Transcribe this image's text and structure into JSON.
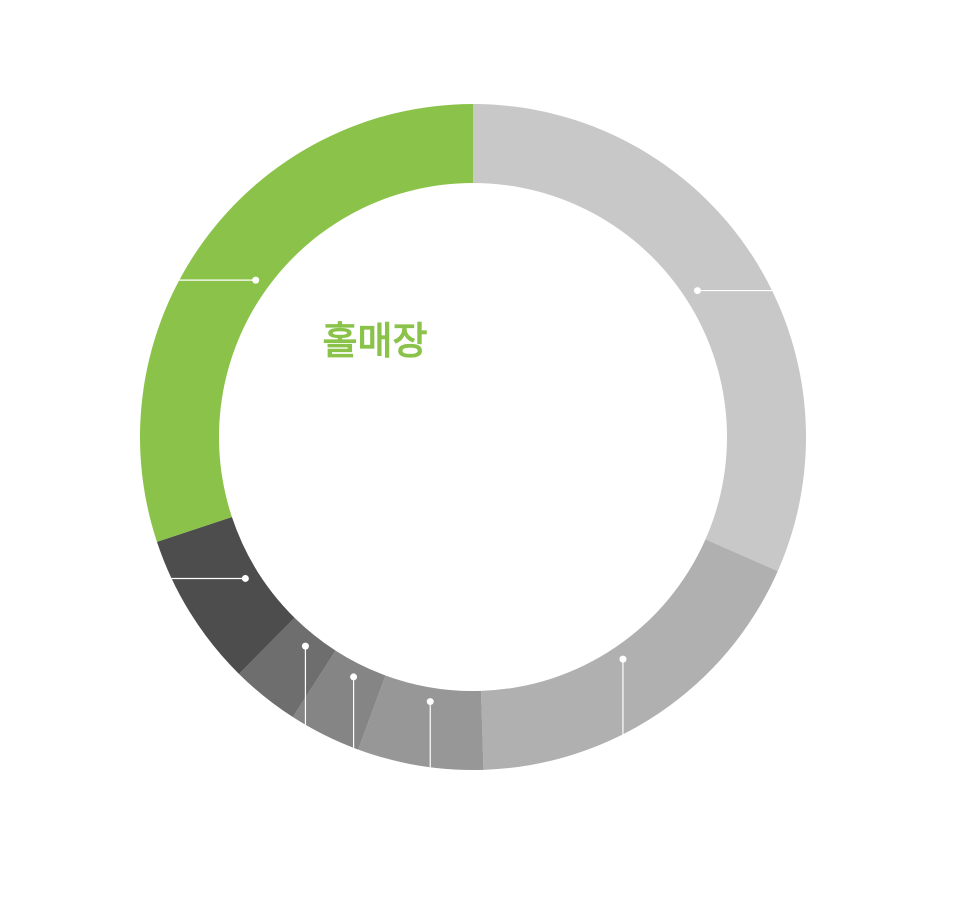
{
  "center_label": "홀매장",
  "colors": {
    "accent": "#8bc34a",
    "leader": "#ffffff",
    "background": "#ffffff"
  },
  "chart_data": {
    "type": "pie",
    "variant": "donut",
    "title": "",
    "slices": [
      {
        "value": 31.6,
        "color": "#c8c8c8"
      },
      {
        "value": 17.9,
        "color": "#b0b0b0"
      },
      {
        "value": 6.1,
        "color": "#979797"
      },
      {
        "value": 3.5,
        "color": "#858585"
      },
      {
        "value": 3.3,
        "color": "#6e6e6e"
      },
      {
        "value": 7.5,
        "color": "#4d4d4d"
      },
      {
        "value": 30.1,
        "color": "#8bc34a"
      }
    ]
  }
}
